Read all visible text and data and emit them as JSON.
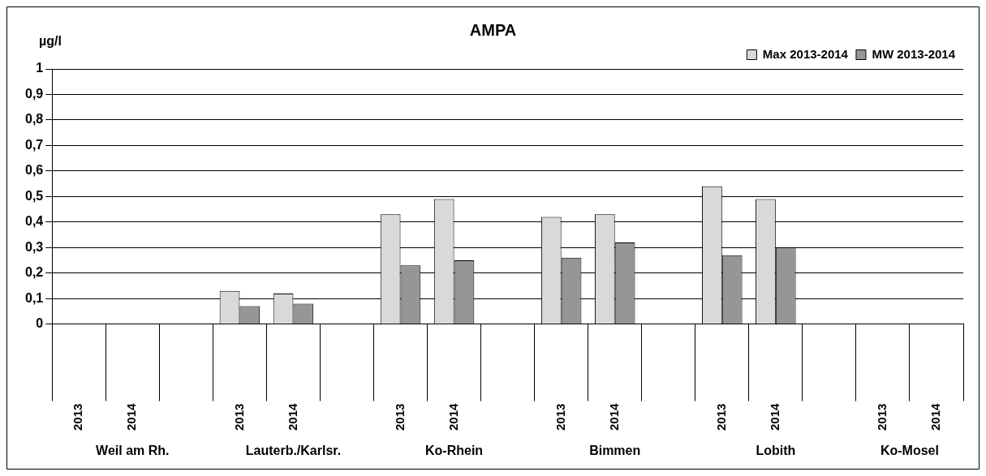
{
  "chart_data": {
    "type": "bar",
    "title": "AMPA",
    "ylabel": "µg/l",
    "categories": [
      "2013",
      "2014",
      null,
      "2013",
      "2014",
      null,
      "2013",
      "2014",
      null,
      "2013",
      "2014",
      null,
      "2013",
      "2014",
      null,
      "2013",
      "2014"
    ],
    "series": [
      {
        "name": "Max 2013-2014",
        "color": "#d9d9d9",
        "values": [
          null,
          null,
          null,
          0.13,
          0.12,
          null,
          0.43,
          0.49,
          null,
          0.42,
          0.43,
          null,
          0.54,
          0.49,
          null,
          null,
          null
        ]
      },
      {
        "name": "MW 2013-2014",
        "color": "#969696",
        "values": [
          null,
          null,
          null,
          0.07,
          0.08,
          null,
          0.23,
          0.25,
          null,
          0.26,
          0.32,
          null,
          0.27,
          0.3,
          null,
          null,
          null
        ]
      }
    ],
    "ylim": [
      0,
      1
    ],
    "yticks": [
      0,
      {
        "value": 0.1,
        "label": "0,1"
      },
      {
        "value": 0.2,
        "label": "0,2"
      },
      {
        "value": 0.3,
        "label": "0,3"
      },
      {
        "value": 0.4,
        "label": "0,4"
      },
      {
        "value": 0.5,
        "label": "0,5"
      },
      {
        "value": 0.6,
        "label": "0,6"
      },
      {
        "value": 0.7,
        "label": "0,7"
      },
      {
        "value": 0.8,
        "label": "0,8"
      },
      {
        "value": 0.9,
        "label": "0,9"
      },
      1
    ],
    "grid": "y",
    "legend": "top right",
    "annotations": [
      "Weil am Rh.",
      "Lauterb./Karlsr.",
      "Ko-Rhein",
      "Bimmen",
      "Lobith",
      "Ko-Mosel"
    ]
  }
}
